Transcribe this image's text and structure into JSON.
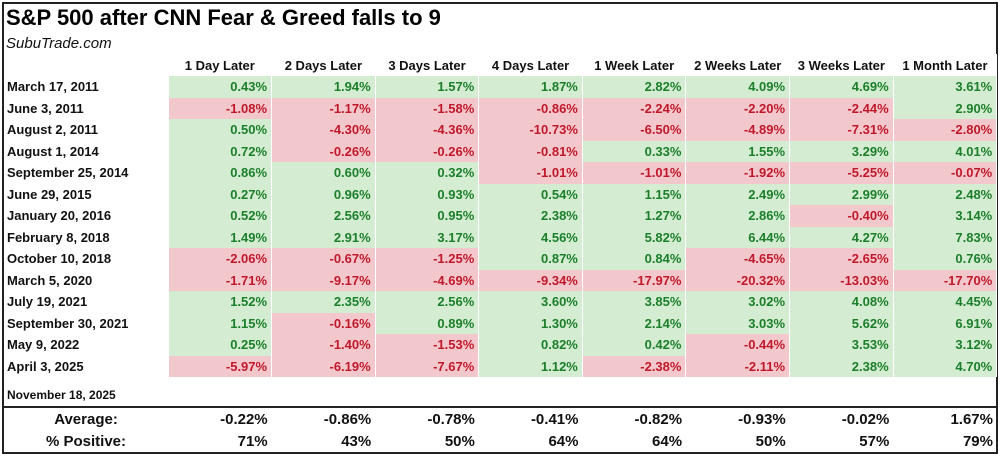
{
  "title": "S&P 500 after CNN Fear & Greed falls to 9",
  "source": "SubuTrade.com",
  "columns": [
    "1 Day Later",
    "2 Days Later",
    "3 Days Later",
    "4 Days Later",
    "1 Week Later",
    "2 Weeks Later",
    "3 Weeks Later",
    "1 Month Later"
  ],
  "colors": {
    "positive_bg": "#d4ecd2",
    "positive_text": "#1b7f2a",
    "negative_bg": "#f3c8cc",
    "negative_text": "#c0182b"
  },
  "rows": [
    {
      "date": "March 17, 2011",
      "values": [
        "0.43%",
        "1.94%",
        "1.57%",
        "1.87%",
        "2.82%",
        "4.09%",
        "4.69%",
        "3.61%"
      ]
    },
    {
      "date": "June 3, 2011",
      "values": [
        "-1.08%",
        "-1.17%",
        "-1.58%",
        "-0.86%",
        "-2.24%",
        "-2.20%",
        "-2.44%",
        "2.90%"
      ]
    },
    {
      "date": "August 2, 2011",
      "values": [
        "0.50%",
        "-4.30%",
        "-4.36%",
        "-10.73%",
        "-6.50%",
        "-4.89%",
        "-7.31%",
        "-2.80%"
      ]
    },
    {
      "date": "August 1, 2014",
      "values": [
        "0.72%",
        "-0.26%",
        "-0.26%",
        "-0.81%",
        "0.33%",
        "1.55%",
        "3.29%",
        "4.01%"
      ]
    },
    {
      "date": "September 25, 2014",
      "values": [
        "0.86%",
        "0.60%",
        "0.32%",
        "-1.01%",
        "-1.01%",
        "-1.92%",
        "-5.25%",
        "-0.07%"
      ]
    },
    {
      "date": "June 29, 2015",
      "values": [
        "0.27%",
        "0.96%",
        "0.93%",
        "0.54%",
        "1.15%",
        "2.49%",
        "2.99%",
        "2.48%"
      ]
    },
    {
      "date": "January 20, 2016",
      "values": [
        "0.52%",
        "2.56%",
        "0.95%",
        "2.38%",
        "1.27%",
        "2.86%",
        "-0.40%",
        "3.14%"
      ]
    },
    {
      "date": "February 8, 2018",
      "values": [
        "1.49%",
        "2.91%",
        "3.17%",
        "4.56%",
        "5.82%",
        "6.44%",
        "4.27%",
        "7.83%"
      ]
    },
    {
      "date": "October 10, 2018",
      "values": [
        "-2.06%",
        "-0.67%",
        "-1.25%",
        "0.87%",
        "0.84%",
        "-4.65%",
        "-2.65%",
        "0.76%"
      ]
    },
    {
      "date": "March 5, 2020",
      "values": [
        "-1.71%",
        "-9.17%",
        "-4.69%",
        "-9.34%",
        "-17.97%",
        "-20.32%",
        "-13.03%",
        "-17.70%"
      ]
    },
    {
      "date": "July 19, 2021",
      "values": [
        "1.52%",
        "2.35%",
        "2.56%",
        "3.60%",
        "3.85%",
        "3.02%",
        "4.08%",
        "4.45%"
      ]
    },
    {
      "date": "September 30, 2021",
      "values": [
        "1.15%",
        "-0.16%",
        "0.89%",
        "1.30%",
        "2.14%",
        "3.03%",
        "5.62%",
        "6.91%"
      ]
    },
    {
      "date": "May 9, 2022",
      "values": [
        "0.25%",
        "-1.40%",
        "-1.53%",
        "0.82%",
        "0.42%",
        "-0.44%",
        "3.53%",
        "3.12%"
      ]
    },
    {
      "date": "April 3, 2025",
      "values": [
        "-5.97%",
        "-6.19%",
        "-7.67%",
        "1.12%",
        "-2.38%",
        "-2.11%",
        "2.38%",
        "4.70%"
      ]
    }
  ],
  "latest_date": "November 18, 2025",
  "summary": [
    {
      "label": "Average:",
      "values": [
        "-0.22%",
        "-0.86%",
        "-0.78%",
        "-0.41%",
        "-0.82%",
        "-0.93%",
        "-0.02%",
        "1.67%"
      ]
    },
    {
      "label": "% Positive:",
      "values": [
        "71%",
        "43%",
        "50%",
        "64%",
        "64%",
        "50%",
        "57%",
        "79%"
      ]
    }
  ]
}
